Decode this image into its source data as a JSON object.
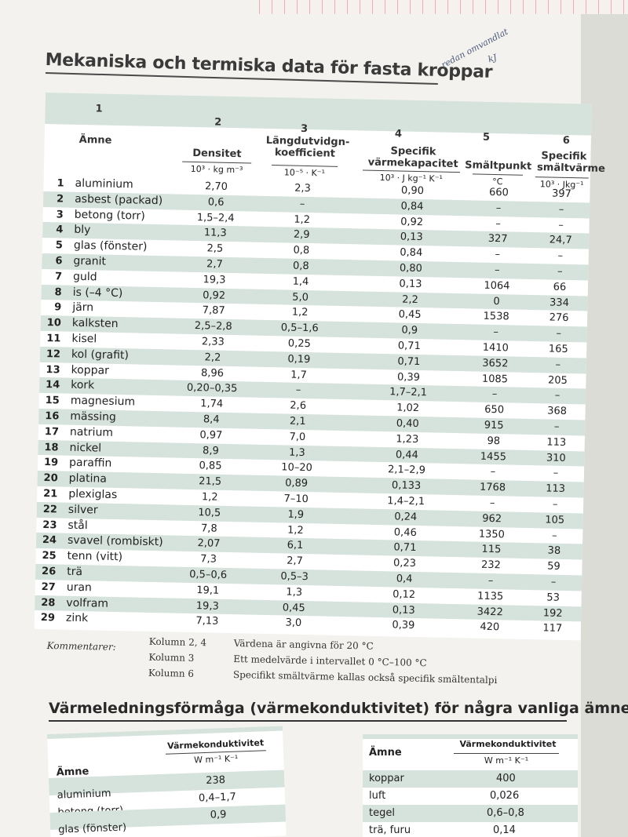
{
  "title": "Mekaniska och termiska data för fasta kroppar",
  "handwritten_note": [
    "redan omvandlat",
    "kJ"
  ],
  "table": {
    "column_numbers": [
      "1",
      "2",
      "3",
      "4",
      "5",
      "6"
    ],
    "amne_header": "Ämne",
    "headers": {
      "density": "Densitet",
      "density_unit": "10³ · kg m⁻³",
      "expansion": "Längdutvidgn-\nkoefficient",
      "expansion_unit": "10⁻⁵ · K⁻¹",
      "heat_capacity": "Specifik\nvärmekapacitet",
      "heat_capacity_unit": "10³ · J kg⁻¹ K⁻¹",
      "melting_point": "Smältpunkt",
      "melting_point_unit": "°C",
      "fusion_heat": "Specifik\nsmältvärme",
      "fusion_heat_unit": "10³ · Jkg⁻¹"
    },
    "rows": [
      {
        "n": "1",
        "name": "aluminium",
        "d": "2,70",
        "l": "2,3",
        "s": "0,90",
        "m": "660",
        "h": "397"
      },
      {
        "n": "2",
        "name": "asbest (packad)",
        "d": "0,6",
        "l": "–",
        "s": "0,84",
        "m": "–",
        "h": "–"
      },
      {
        "n": "3",
        "name": "betong (torr)",
        "d": "1,5–2,4",
        "l": "1,2",
        "s": "0,92",
        "m": "–",
        "h": "–"
      },
      {
        "n": "4",
        "name": "bly",
        "d": "11,3",
        "l": "2,9",
        "s": "0,13",
        "m": "327",
        "h": "24,7"
      },
      {
        "n": "5",
        "name": "glas (fönster)",
        "d": "2,5",
        "l": "0,8",
        "s": "0,84",
        "m": "–",
        "h": "–"
      },
      {
        "n": "6",
        "name": "granit",
        "d": "2,7",
        "l": "0,8",
        "s": "0,80",
        "m": "–",
        "h": "–"
      },
      {
        "n": "7",
        "name": "guld",
        "d": "19,3",
        "l": "1,4",
        "s": "0,13",
        "m": "1064",
        "h": "66"
      },
      {
        "n": "8",
        "name": "is (–4 °C)",
        "d": "0,92",
        "l": "5,0",
        "s": "2,2",
        "m": "0",
        "h": "334"
      },
      {
        "n": "9",
        "name": "järn",
        "d": "7,87",
        "l": "1,2",
        "s": "0,45",
        "m": "1538",
        "h": "276"
      },
      {
        "n": "10",
        "name": "kalksten",
        "d": "2,5–2,8",
        "l": "0,5–1,6",
        "s": "0,9",
        "m": "–",
        "h": "–"
      },
      {
        "n": "11",
        "name": "kisel",
        "d": "2,33",
        "l": "0,25",
        "s": "0,71",
        "m": "1410",
        "h": "165"
      },
      {
        "n": "12",
        "name": "kol (grafit)",
        "d": "2,2",
        "l": "0,19",
        "s": "0,71",
        "m": "3652",
        "h": "–"
      },
      {
        "n": "13",
        "name": "koppar",
        "d": "8,96",
        "l": "1,7",
        "s": "0,39",
        "m": "1085",
        "h": "205"
      },
      {
        "n": "14",
        "name": "kork",
        "d": "0,20–0,35",
        "l": "–",
        "s": "1,7–2,1",
        "m": "–",
        "h": "–"
      },
      {
        "n": "15",
        "name": "magnesium",
        "d": "1,74",
        "l": "2,6",
        "s": "1,02",
        "m": "650",
        "h": "368"
      },
      {
        "n": "16",
        "name": "mässing",
        "d": "8,4",
        "l": "2,1",
        "s": "0,40",
        "m": "915",
        "h": "–"
      },
      {
        "n": "17",
        "name": "natrium",
        "d": "0,97",
        "l": "7,0",
        "s": "1,23",
        "m": "98",
        "h": "113"
      },
      {
        "n": "18",
        "name": "nickel",
        "d": "8,9",
        "l": "1,3",
        "s": "0,44",
        "m": "1455",
        "h": "310"
      },
      {
        "n": "19",
        "name": "paraffin",
        "d": "0,85",
        "l": "10–20",
        "s": "2,1–2,9",
        "m": "–",
        "h": "–"
      },
      {
        "n": "20",
        "name": "platina",
        "d": "21,5",
        "l": "0,89",
        "s": "0,133",
        "m": "1768",
        "h": "113"
      },
      {
        "n": "21",
        "name": "plexiglas",
        "d": "1,2",
        "l": "7–10",
        "s": "1,4–2,1",
        "m": "–",
        "h": "–"
      },
      {
        "n": "22",
        "name": "silver",
        "d": "10,5",
        "l": "1,9",
        "s": "0,24",
        "m": "962",
        "h": "105"
      },
      {
        "n": "23",
        "name": "stål",
        "d": "7,8",
        "l": "1,2",
        "s": "0,46",
        "m": "1350",
        "h": "–"
      },
      {
        "n": "24",
        "name": "svavel (rombiskt)",
        "d": "2,07",
        "l": "6,1",
        "s": "0,71",
        "m": "115",
        "h": "38"
      },
      {
        "n": "25",
        "name": "tenn (vitt)",
        "d": "7,3",
        "l": "2,7",
        "s": "0,23",
        "m": "232",
        "h": "59"
      },
      {
        "n": "26",
        "name": "trä",
        "d": "0,5–0,6",
        "l": "0,5–3",
        "s": "0,4",
        "m": "–",
        "h": "–"
      },
      {
        "n": "27",
        "name": "uran",
        "d": "19,1",
        "l": "1,3",
        "s": "0,12",
        "m": "1135",
        "h": "53"
      },
      {
        "n": "28",
        "name": "volfram",
        "d": "19,3",
        "l": "0,45",
        "s": "0,13",
        "m": "3422",
        "h": "192"
      },
      {
        "n": "29",
        "name": "zink",
        "d": "7,13",
        "l": "3,0",
        "s": "0,39",
        "m": "420",
        "h": "117"
      }
    ]
  },
  "comments": {
    "label": "Kommentarer:",
    "items": [
      {
        "key": "Kolumn 2, 4",
        "text": "Värdena är angivna för 20 °C"
      },
      {
        "key": "Kolumn 3",
        "text": "Ett medelvärde i intervallet 0 °C–100 °C"
      },
      {
        "key": "Kolumn 6",
        "text": "Specifikt smältvärme kallas också specifik smältentalpi"
      }
    ]
  },
  "section2": {
    "title_bold": "Värmeledningsförmåga",
    "title_rest": " (värmekonduktivitet) för några vanliga ämnen",
    "col_amne": "Ämne",
    "col_vk": "Värmekonduktivitet",
    "col_unit": "W m⁻¹ K⁻¹",
    "left_rows": [
      {
        "name": "aluminium",
        "value": "238"
      },
      {
        "name": "betong (torr)",
        "value": "0,4–1,7"
      },
      {
        "name": "glas (fönster)",
        "value": "0,9"
      }
    ],
    "right_rows": [
      {
        "name": "koppar",
        "value": "400"
      },
      {
        "name": "luft",
        "value": "0,026"
      },
      {
        "name": "tegel",
        "value": "0,6–0,8"
      },
      {
        "name": "trä, furu",
        "value": "0,14"
      }
    ]
  },
  "colors": {
    "band": "#d6e2dc",
    "text": "#222222",
    "page": "#f3f2ee"
  }
}
